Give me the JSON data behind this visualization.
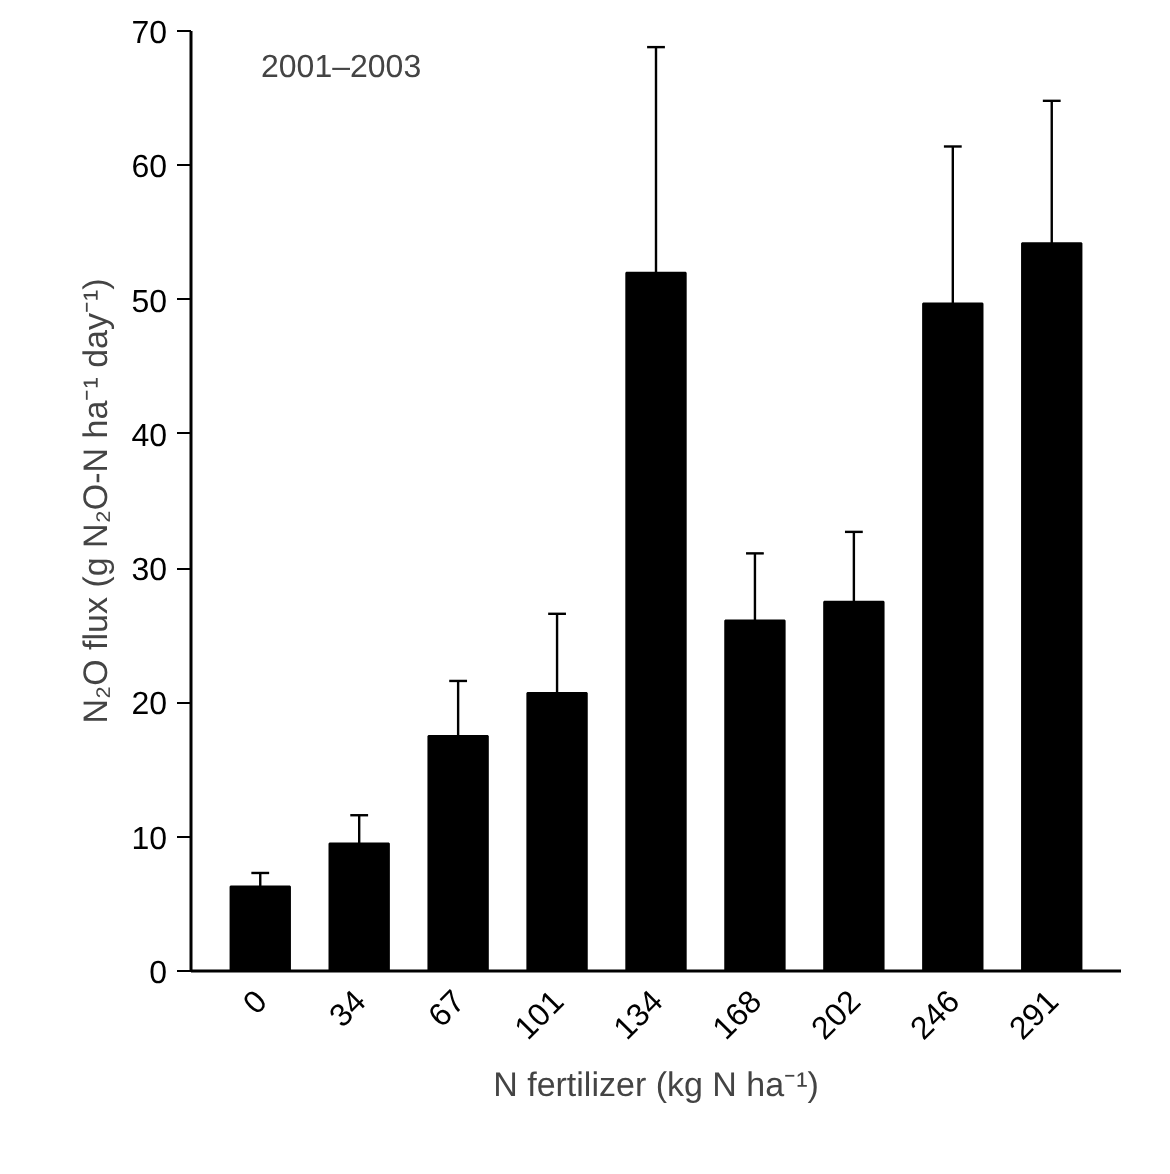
{
  "chart_data": {
    "type": "bar",
    "xlabel": "N fertilizer (kg N ha⁻¹)",
    "ylabel": "N₂O flux (g N₂O-N ha⁻¹ day⁻¹)",
    "annotations": [
      "2001–2003"
    ],
    "categories": [
      "0",
      "34",
      "67",
      "101",
      "134",
      "168",
      "202",
      "246",
      "291"
    ],
    "values": [
      6.3,
      9.5,
      17.5,
      20.7,
      52.0,
      26.1,
      27.5,
      49.7,
      54.2
    ],
    "errors": [
      [
        6.3,
        7.3
      ],
      [
        9.5,
        11.6
      ],
      [
        17.5,
        21.6
      ],
      [
        20.7,
        26.6
      ],
      [
        52.0,
        68.8
      ],
      [
        26.1,
        31.1
      ],
      [
        27.5,
        32.7
      ],
      [
        49.7,
        61.4
      ],
      [
        54.2,
        64.8
      ]
    ],
    "color": "#000000",
    "ylim": [
      0,
      70
    ],
    "yticks": [
      0,
      10,
      20,
      30,
      40,
      50,
      60,
      70
    ],
    "grid": false
  }
}
